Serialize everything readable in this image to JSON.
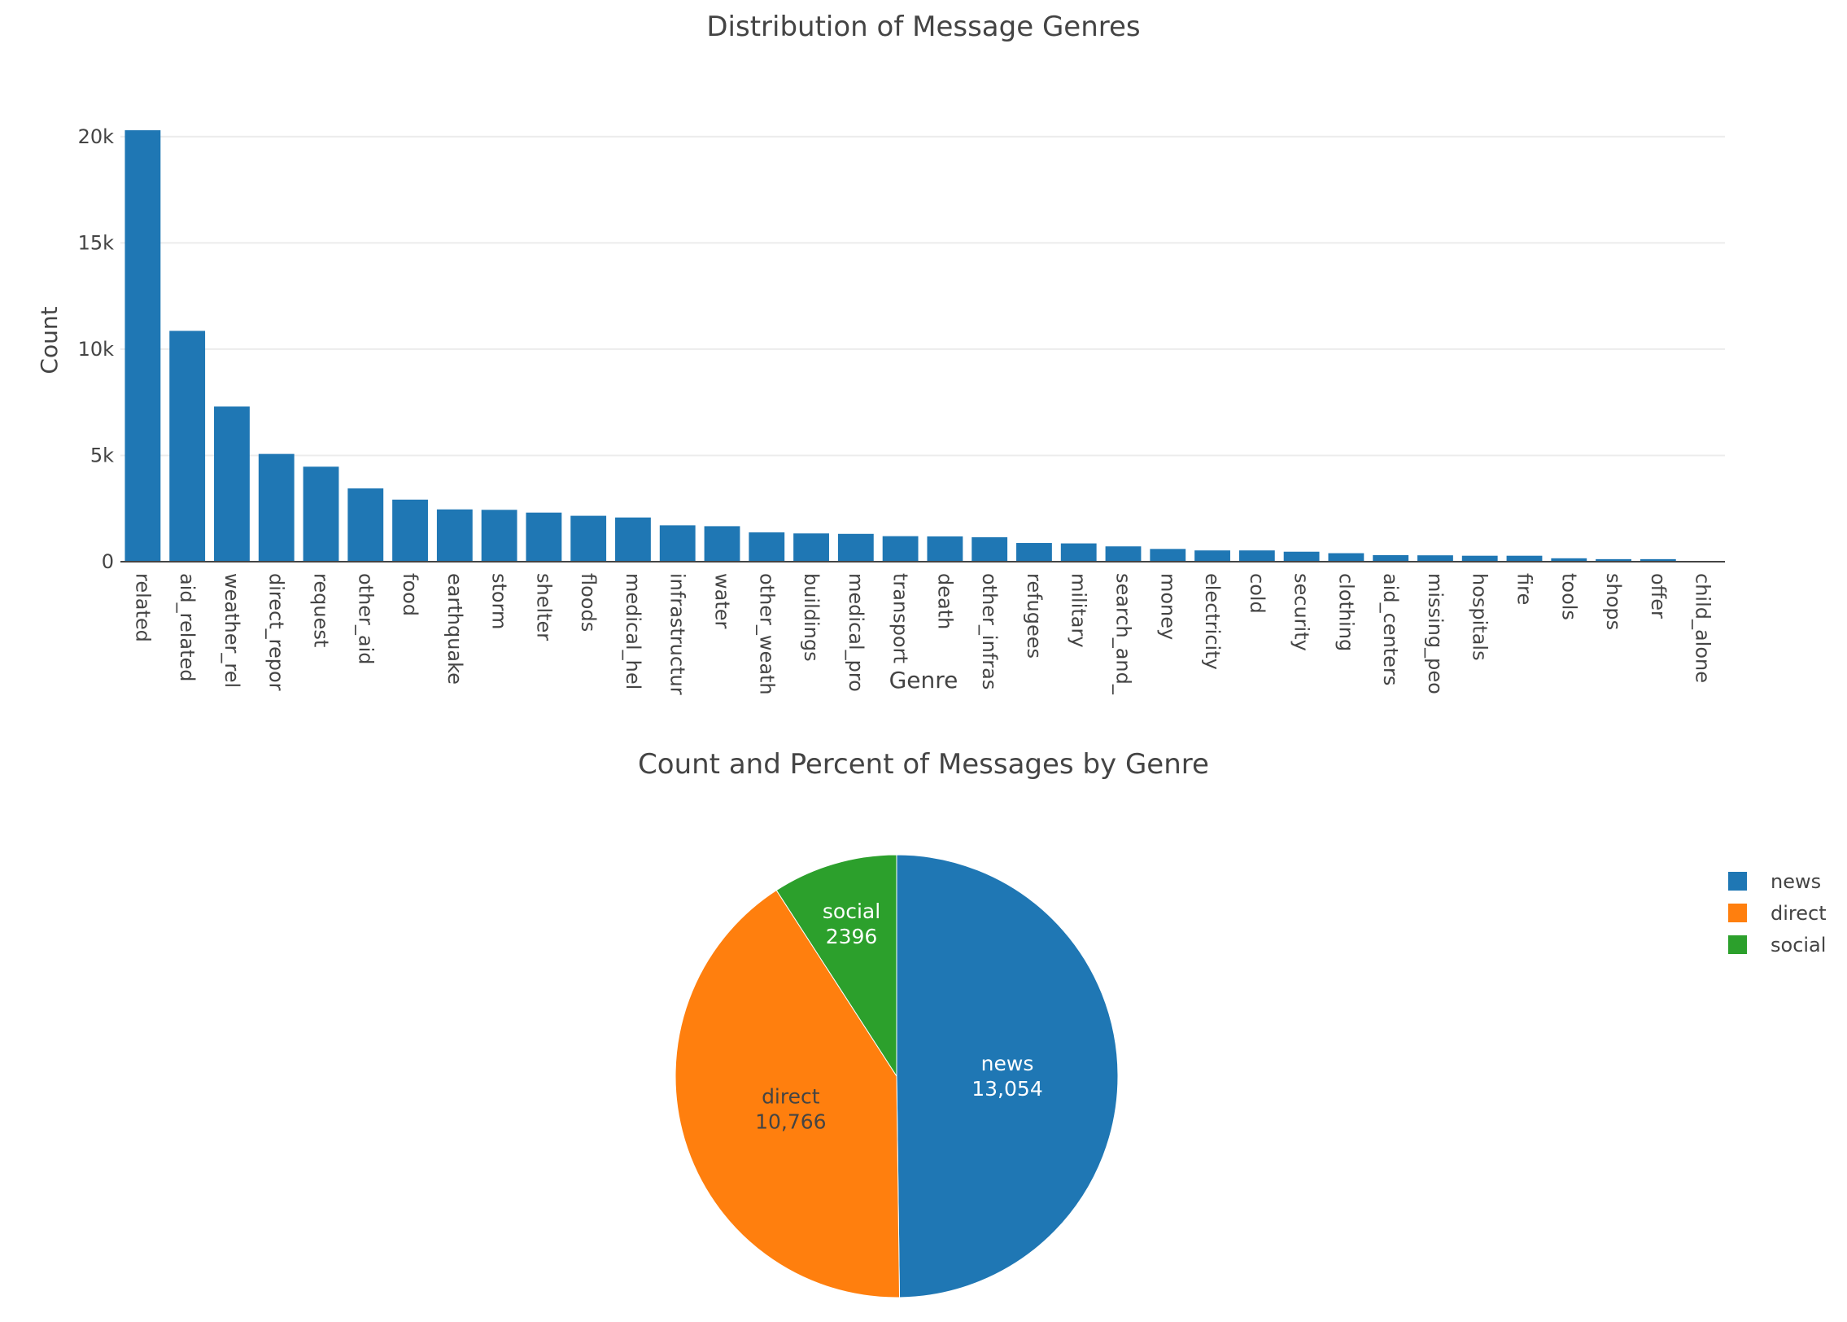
{
  "chart_data": [
    {
      "type": "bar",
      "title": "Distribution of Message Genres",
      "xlabel": "Genre",
      "ylabel": "Count",
      "ylim": [
        0,
        20300
      ],
      "yticks": [
        0,
        5000,
        10000,
        15000,
        20000
      ],
      "ytick_labels": [
        "0",
        "5k",
        "10k",
        "15k",
        "20k"
      ],
      "grid": true,
      "bar_color": "#1f77b4",
      "categories": [
        "related",
        "aid_related",
        "weather_rel",
        "direct_repor",
        "request",
        "other_aid",
        "food",
        "earthquake",
        "storm",
        "shelter",
        "floods",
        "medical_hel",
        "infrastructur",
        "water",
        "other_weath",
        "buildings",
        "medical_pro",
        "transport",
        "death",
        "other_infras",
        "refugees",
        "military",
        "search_and_",
        "money",
        "electricity",
        "cold",
        "security",
        "clothing",
        "aid_centers",
        "missing_peo",
        "hospitals",
        "fire",
        "tools",
        "shops",
        "offer",
        "child_alone"
      ],
      "values": [
        20300,
        10860,
        7300,
        5070,
        4470,
        3450,
        2920,
        2460,
        2440,
        2310,
        2160,
        2080,
        1710,
        1670,
        1380,
        1330,
        1310,
        1200,
        1190,
        1150,
        880,
        860,
        720,
        600,
        530,
        530,
        470,
        400,
        310,
        300,
        280,
        280,
        160,
        120,
        120,
        0
      ]
    },
    {
      "type": "pie",
      "title": "Count and Percent of Messages by Genre",
      "labels": [
        "news",
        "direct",
        "social"
      ],
      "values": [
        13054,
        10766,
        2396
      ],
      "display_values": [
        "13,054",
        "10,766",
        "2396"
      ],
      "colors": [
        "#1f77b4",
        "#ff7f0e",
        "#2ca02c"
      ],
      "text_colors": [
        "#ffffff",
        "#444444",
        "#ffffff"
      ],
      "legend_position": "right",
      "legend": [
        {
          "label": "news",
          "color": "#1f77b4"
        },
        {
          "label": "direct",
          "color": "#ff7f0e"
        },
        {
          "label": "social",
          "color": "#2ca02c"
        }
      ]
    }
  ]
}
